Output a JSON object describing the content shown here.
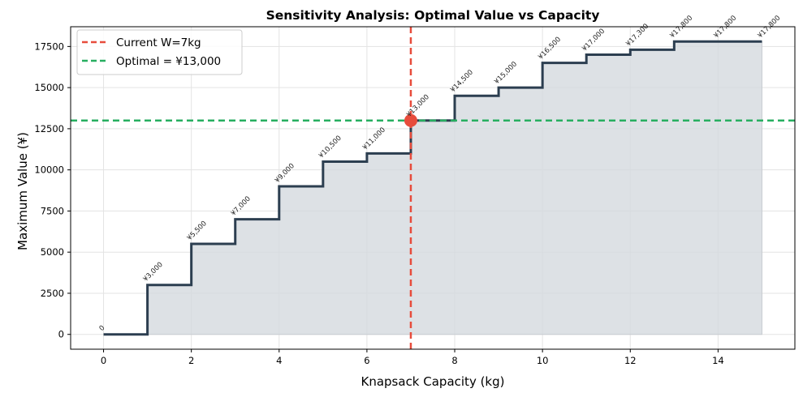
{
  "chart_data": {
    "type": "line",
    "subtype": "step",
    "title": "Sensitivity Analysis: Optimal Value vs Capacity",
    "xlabel": "Knapsack Capacity (kg)",
    "ylabel": "Maximum Value (¥)",
    "xlim": [
      -0.75,
      15.75
    ],
    "ylim": [
      -900,
      18700
    ],
    "xticks": [
      0,
      2,
      4,
      6,
      8,
      10,
      12,
      14
    ],
    "yticks": [
      0,
      2500,
      5000,
      7500,
      10000,
      12500,
      15000,
      17500
    ],
    "grid": true,
    "x": [
      0,
      1,
      2,
      3,
      4,
      5,
      6,
      7,
      8,
      9,
      10,
      11,
      12,
      13,
      14,
      15
    ],
    "values": [
      0,
      3000,
      5500,
      7000,
      9000,
      10500,
      11000,
      13000,
      14500,
      15000,
      16500,
      17000,
      17300,
      17800,
      17800,
      17800
    ],
    "point_labels": [
      "0",
      "¥3,000",
      "¥5,500",
      "¥7,000",
      "¥9,000",
      "¥10,500",
      "¥11,000",
      "¥13,000",
      "¥14,500",
      "¥15,000",
      "¥16,500",
      "¥17,000",
      "¥17,300",
      "¥17,800",
      "¥17,800",
      "¥17,800"
    ],
    "series_color": "#2c3e50",
    "fill_color": "#d5d9de",
    "current_capacity": 7,
    "optimal_value": 13000,
    "current_line_color": "#e74c3c",
    "optimal_line_color": "#27ae60",
    "marker_color": "#e74c3c",
    "legend": {
      "placement": "top-left",
      "entries": [
        {
          "label": "Current W=7kg",
          "color": "#e74c3c"
        },
        {
          "label": "Optimal = ¥13,000",
          "color": "#27ae60"
        }
      ]
    }
  }
}
